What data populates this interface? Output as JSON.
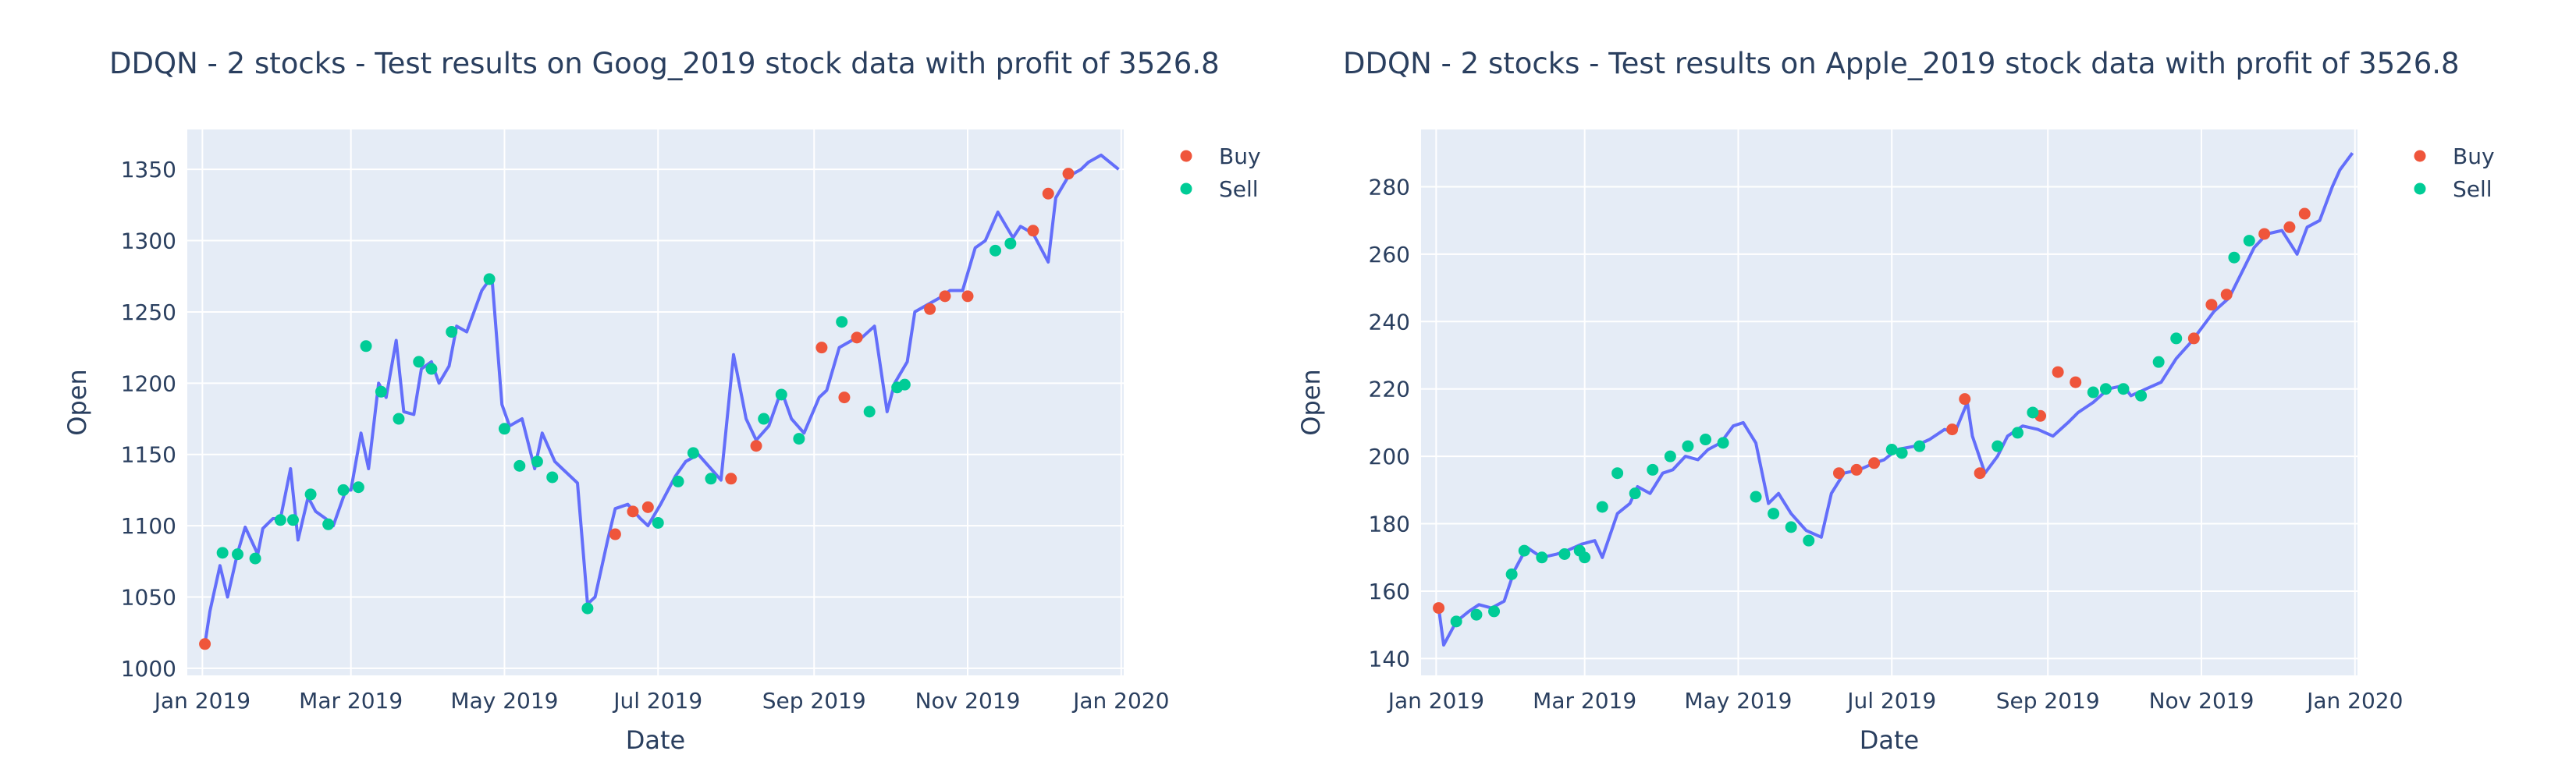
{
  "colors": {
    "price_line": "#636efa",
    "buy": "#ef553b",
    "sell": "#00cc96",
    "plot_bg": "#e5ecf6",
    "grid": "#ffffff",
    "text": "#2a3f5f"
  },
  "chart_data": [
    {
      "type": "line",
      "title": "DDQN - 2 stocks - Test results on Goog_2019 stock data with profit of 3526.8",
      "xlabel": "Date",
      "ylabel": "Open",
      "xlim": [
        "2018-12-26",
        "2020-01-02"
      ],
      "ylim": [
        995,
        1378
      ],
      "grid": true,
      "legend_position": "top-right",
      "x_ticks": [
        {
          "label": "Jan 2019",
          "date": "2019-01-01"
        },
        {
          "label": "Mar 2019",
          "date": "2019-03-01"
        },
        {
          "label": "May 2019",
          "date": "2019-05-01"
        },
        {
          "label": "Jul 2019",
          "date": "2019-07-01"
        },
        {
          "label": "Sep 2019",
          "date": "2019-09-01"
        },
        {
          "label": "Nov 2019",
          "date": "2019-11-01"
        },
        {
          "label": "Jan 2020",
          "date": "2020-01-01"
        }
      ],
      "y_ticks": [
        1000,
        1050,
        1100,
        1150,
        1200,
        1250,
        1300,
        1350
      ],
      "series": [
        {
          "kind": "line",
          "x": [
            "2019-01-02",
            "2019-01-04",
            "2019-01-08",
            "2019-01-11",
            "2019-01-15",
            "2019-01-18",
            "2019-01-23",
            "2019-01-25",
            "2019-01-29",
            "2019-02-01",
            "2019-02-05",
            "2019-02-08",
            "2019-02-12",
            "2019-02-15",
            "2019-02-19",
            "2019-02-22",
            "2019-02-27",
            "2019-03-01",
            "2019-03-05",
            "2019-03-08",
            "2019-03-12",
            "2019-03-15",
            "2019-03-19",
            "2019-03-22",
            "2019-03-26",
            "2019-03-29",
            "2019-04-02",
            "2019-04-05",
            "2019-04-09",
            "2019-04-12",
            "2019-04-16",
            "2019-04-22",
            "2019-04-26",
            "2019-04-30",
            "2019-05-03",
            "2019-05-08",
            "2019-05-13",
            "2019-05-16",
            "2019-05-21",
            "2019-05-24",
            "2019-05-30",
            "2019-06-03",
            "2019-06-06",
            "2019-06-11",
            "2019-06-14",
            "2019-06-19",
            "2019-06-24",
            "2019-06-27",
            "2019-07-02",
            "2019-07-08",
            "2019-07-12",
            "2019-07-17",
            "2019-07-22",
            "2019-07-26",
            "2019-07-31",
            "2019-08-05",
            "2019-08-09",
            "2019-08-14",
            "2019-08-19",
            "2019-08-23",
            "2019-08-28",
            "2019-09-03",
            "2019-09-06",
            "2019-09-11",
            "2019-09-16",
            "2019-09-20",
            "2019-09-25",
            "2019-09-30",
            "2019-10-03",
            "2019-10-08",
            "2019-10-11",
            "2019-10-16",
            "2019-10-21",
            "2019-10-25",
            "2019-10-30",
            "2019-11-04",
            "2019-11-08",
            "2019-11-13",
            "2019-11-19",
            "2019-11-22",
            "2019-11-27",
            "2019-12-03",
            "2019-12-06",
            "2019-12-11",
            "2019-12-16",
            "2019-12-19",
            "2019-12-24",
            "2019-12-31"
          ],
          "values": [
            1017,
            1040,
            1072,
            1050,
            1081,
            1099,
            1080,
            1098,
            1105,
            1105,
            1140,
            1090,
            1120,
            1110,
            1105,
            1100,
            1125,
            1125,
            1165,
            1140,
            1200,
            1190,
            1230,
            1180,
            1178,
            1210,
            1215,
            1200,
            1212,
            1240,
            1236,
            1265,
            1275,
            1185,
            1170,
            1175,
            1140,
            1165,
            1145,
            1140,
            1130,
            1045,
            1050,
            1090,
            1112,
            1115,
            1105,
            1100,
            1115,
            1135,
            1145,
            1150,
            1140,
            1132,
            1220,
            1175,
            1160,
            1170,
            1195,
            1175,
            1165,
            1190,
            1195,
            1225,
            1230,
            1232,
            1240,
            1180,
            1200,
            1215,
            1250,
            1255,
            1260,
            1265,
            1265,
            1295,
            1300,
            1320,
            1302,
            1310,
            1305,
            1285,
            1330,
            1345,
            1350,
            1355,
            1360,
            1350
          ]
        },
        {
          "kind": "markers",
          "name": "Buy",
          "x": [
            "2019-01-02",
            "2019-06-14",
            "2019-06-21",
            "2019-06-27",
            "2019-07-30",
            "2019-08-09",
            "2019-09-04",
            "2019-09-13",
            "2019-09-18",
            "2019-10-17",
            "2019-10-23",
            "2019-11-01",
            "2019-11-27",
            "2019-12-03",
            "2019-12-11"
          ],
          "values": [
            1017,
            1094,
            1110,
            1113,
            1133,
            1156,
            1225,
            1190,
            1232,
            1252,
            1261,
            1261,
            1307,
            1333,
            1347
          ]
        },
        {
          "kind": "markers",
          "name": "Sell",
          "x": [
            "2019-01-09",
            "2019-01-15",
            "2019-01-22",
            "2019-02-01",
            "2019-02-06",
            "2019-02-13",
            "2019-02-20",
            "2019-02-26",
            "2019-03-04",
            "2019-03-07",
            "2019-03-13",
            "2019-03-20",
            "2019-03-28",
            "2019-04-02",
            "2019-04-10",
            "2019-04-25",
            "2019-05-01",
            "2019-05-07",
            "2019-05-14",
            "2019-05-20",
            "2019-06-03",
            "2019-07-01",
            "2019-07-09",
            "2019-07-15",
            "2019-07-22",
            "2019-08-12",
            "2019-08-19",
            "2019-08-26",
            "2019-09-12",
            "2019-09-23",
            "2019-10-04",
            "2019-10-07",
            "2019-11-12",
            "2019-11-18"
          ],
          "values": [
            1081,
            1080,
            1077,
            1104,
            1104,
            1122,
            1101,
            1125,
            1127,
            1226,
            1194,
            1175,
            1215,
            1210,
            1236,
            1273,
            1168,
            1142,
            1145,
            1134,
            1042,
            1102,
            1131,
            1151,
            1133,
            1175,
            1192,
            1161,
            1243,
            1180,
            1197,
            1199,
            1293,
            1298
          ]
        }
      ]
    },
    {
      "type": "line",
      "title": "DDQN - 2 stocks - Test results on Apple_2019 stock data with profit of 3526.8",
      "xlabel": "Date",
      "ylabel": "Open",
      "xlim": [
        "2018-12-26",
        "2020-01-02"
      ],
      "ylim": [
        135,
        297
      ],
      "grid": true,
      "legend_position": "top-right",
      "x_ticks": [
        {
          "label": "Jan 2019",
          "date": "2019-01-01"
        },
        {
          "label": "Mar 2019",
          "date": "2019-03-01"
        },
        {
          "label": "May 2019",
          "date": "2019-05-01"
        },
        {
          "label": "Jul 2019",
          "date": "2019-07-01"
        },
        {
          "label": "Sep 2019",
          "date": "2019-09-01"
        },
        {
          "label": "Nov 2019",
          "date": "2019-11-01"
        },
        {
          "label": "Jan 2020",
          "date": "2020-01-01"
        }
      ],
      "y_ticks": [
        140,
        160,
        180,
        200,
        220,
        240,
        260,
        280
      ],
      "series": [
        {
          "kind": "line",
          "x": [
            "2019-01-02",
            "2019-01-04",
            "2019-01-09",
            "2019-01-14",
            "2019-01-18",
            "2019-01-23",
            "2019-01-28",
            "2019-02-01",
            "2019-02-06",
            "2019-02-12",
            "2019-02-18",
            "2019-02-22",
            "2019-02-28",
            "2019-03-05",
            "2019-03-08",
            "2019-03-14",
            "2019-03-19",
            "2019-03-22",
            "2019-03-27",
            "2019-04-01",
            "2019-04-05",
            "2019-04-10",
            "2019-04-15",
            "2019-04-19",
            "2019-04-24",
            "2019-04-29",
            "2019-05-03",
            "2019-05-08",
            "2019-05-13",
            "2019-05-17",
            "2019-05-22",
            "2019-05-28",
            "2019-06-03",
            "2019-06-07",
            "2019-06-12",
            "2019-06-18",
            "2019-06-24",
            "2019-06-28",
            "2019-07-03",
            "2019-07-10",
            "2019-07-16",
            "2019-07-22",
            "2019-07-26",
            "2019-07-31",
            "2019-08-02",
            "2019-08-07",
            "2019-08-12",
            "2019-08-16",
            "2019-08-22",
            "2019-08-28",
            "2019-09-03",
            "2019-09-09",
            "2019-09-13",
            "2019-09-19",
            "2019-09-25",
            "2019-10-01",
            "2019-10-04",
            "2019-10-10",
            "2019-10-16",
            "2019-10-22",
            "2019-10-28",
            "2019-11-01",
            "2019-11-06",
            "2019-11-12",
            "2019-11-18",
            "2019-11-22",
            "2019-11-27",
            "2019-12-03",
            "2019-12-09",
            "2019-12-13",
            "2019-12-18",
            "2019-12-23",
            "2019-12-26",
            "2019-12-31"
          ],
          "values": [
            155,
            144,
            151,
            154,
            156,
            155,
            157,
            166,
            173,
            170,
            171,
            172,
            174,
            175,
            170,
            183,
            186,
            191,
            189,
            195,
            196,
            200,
            199,
            202,
            204,
            209,
            210,
            204,
            186,
            189,
            183,
            178,
            176,
            189,
            195,
            196,
            198,
            199,
            202,
            203,
            205,
            208,
            207,
            216,
            206,
            195,
            200,
            206,
            209,
            208,
            206,
            210,
            213,
            216,
            220,
            221,
            218,
            220,
            222,
            229,
            234,
            238,
            243,
            247,
            256,
            262,
            266,
            267,
            260,
            268,
            270,
            280,
            285,
            290
          ]
        },
        {
          "kind": "markers",
          "name": "Buy",
          "x": [
            "2019-01-02",
            "2019-06-10",
            "2019-06-17",
            "2019-06-24",
            "2019-07-25",
            "2019-07-30",
            "2019-08-05",
            "2019-08-29",
            "2019-09-05",
            "2019-09-12",
            "2019-10-29",
            "2019-11-05",
            "2019-11-11",
            "2019-11-26",
            "2019-12-06",
            "2019-12-12"
          ],
          "values": [
            155,
            195,
            196,
            198,
            208,
            217,
            195,
            212,
            225,
            222,
            235,
            245,
            248,
            266,
            268,
            272
          ]
        },
        {
          "kind": "markers",
          "name": "Sell",
          "x": [
            "2019-01-09",
            "2019-01-17",
            "2019-01-24",
            "2019-01-31",
            "2019-02-05",
            "2019-02-12",
            "2019-02-21",
            "2019-02-27",
            "2019-03-01",
            "2019-03-08",
            "2019-03-14",
            "2019-03-21",
            "2019-03-28",
            "2019-04-04",
            "2019-04-11",
            "2019-04-18",
            "2019-04-25",
            "2019-05-08",
            "2019-05-15",
            "2019-05-22",
            "2019-05-29",
            "2019-07-01",
            "2019-07-05",
            "2019-07-12",
            "2019-08-12",
            "2019-08-20",
            "2019-08-26",
            "2019-09-19",
            "2019-09-24",
            "2019-10-01",
            "2019-10-08",
            "2019-10-15",
            "2019-10-22",
            "2019-11-14",
            "2019-11-20"
          ],
          "values": [
            151,
            153,
            154,
            165,
            172,
            170,
            171,
            172,
            170,
            185,
            195,
            189,
            196,
            200,
            203,
            205,
            204,
            188,
            183,
            179,
            175,
            202,
            201,
            203,
            203,
            207,
            213,
            219,
            220,
            220,
            218,
            228,
            235,
            259,
            264
          ]
        }
      ]
    }
  ]
}
